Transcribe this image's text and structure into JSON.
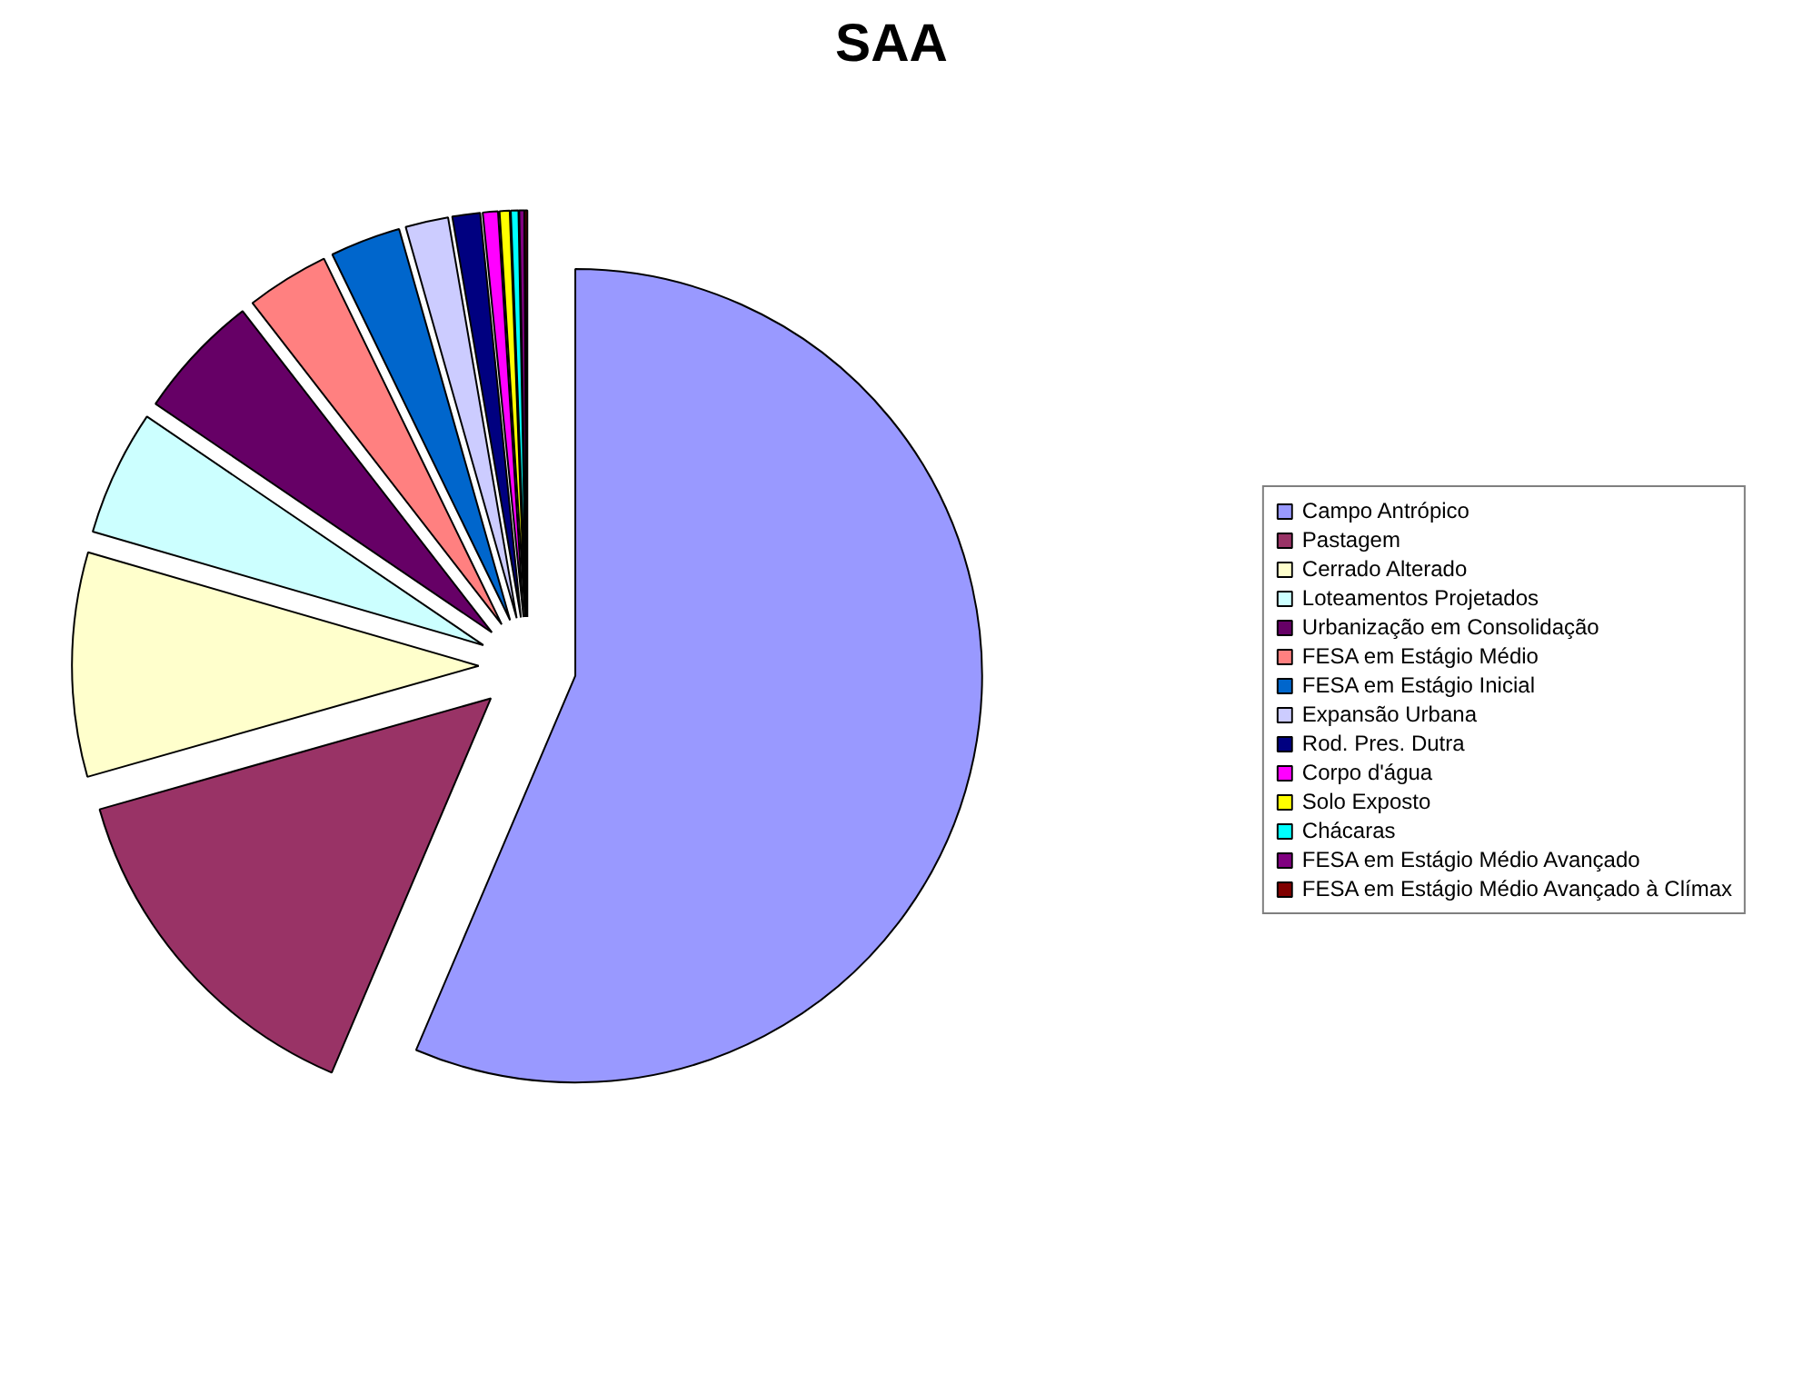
{
  "chart_data": {
    "type": "pie",
    "title": "SAA",
    "categories": [
      "Campo Antrópico",
      "Pastagem",
      "Cerrado Alterado",
      "Loteamentos Projetados",
      "Urbanização em Consolidação",
      "FESA em Estágio Médio",
      "FESA em Estágio Inicial",
      "Expansão Urbana",
      "Rod. Pres. Dutra",
      "Corpo d'água",
      "Solo Exposto",
      "Chácaras",
      "FESA em Estágio Médio Avançado",
      "FESA em Estágio Médio Avançado à Clímax"
    ],
    "values": [
      56.4,
      14.2,
      8.9,
      5.0,
      5.0,
      3.3,
      2.8,
      1.7,
      1.1,
      0.6,
      0.4,
      0.3,
      0.2,
      0.1
    ],
    "colors": [
      "#9999ff",
      "#993366",
      "#ffffcc",
      "#ccffff",
      "#660066",
      "#ff8080",
      "#0066cc",
      "#ccccff",
      "#000080",
      "#ff00ff",
      "#ffff00",
      "#00ffff",
      "#800080",
      "#800000"
    ],
    "legend": "right"
  }
}
